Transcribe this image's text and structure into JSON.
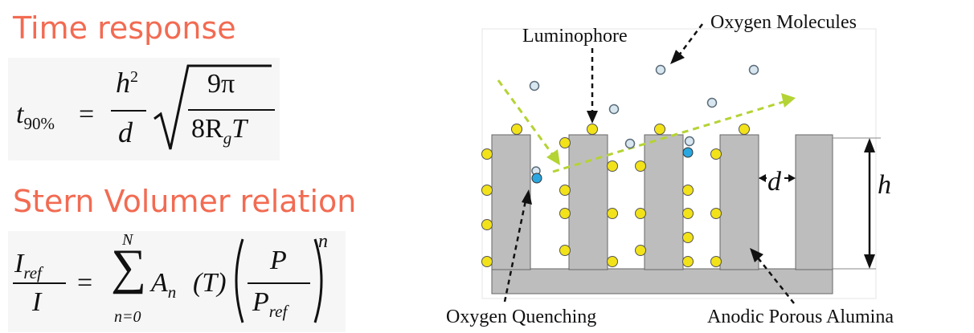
{
  "left": {
    "time_heading": "Time response",
    "stern_heading": "Stern Volumer relation",
    "eq1": {
      "lhs": "t",
      "lhs_sub": "90%",
      "eq": "=",
      "h": "h",
      "h_sup": "2",
      "d": "d",
      "num": "9π",
      "den_a": "8R",
      "den_sub": "g",
      "den_b": "T"
    },
    "eq2": {
      "I": "I",
      "ref": "ref",
      "I_den": "I",
      "eq": "=",
      "sum_top": "N",
      "sum_bot": "n=0",
      "A": "A",
      "A_sub": "n",
      "T": "(T)",
      "P": "P",
      "P_ref": "P",
      "P_ref_sub": "ref",
      "exp": "n"
    }
  },
  "diagram": {
    "labels": {
      "luminophore": "Luminophore",
      "oxygen_molecules": "Oxygen Molecules",
      "oxygen_quenching": "Oxygen Quenching",
      "alumina": "Anodic Porous Alumina",
      "d": "d",
      "h": "h"
    },
    "colors": {
      "pillar": "#bdbdbd",
      "luminophore": "#f2e21a",
      "quenched": "#2aa7e0",
      "oxygen": "#d8e6f0",
      "light_arrow": "#b4d334",
      "heading": "#f26b52"
    }
  }
}
